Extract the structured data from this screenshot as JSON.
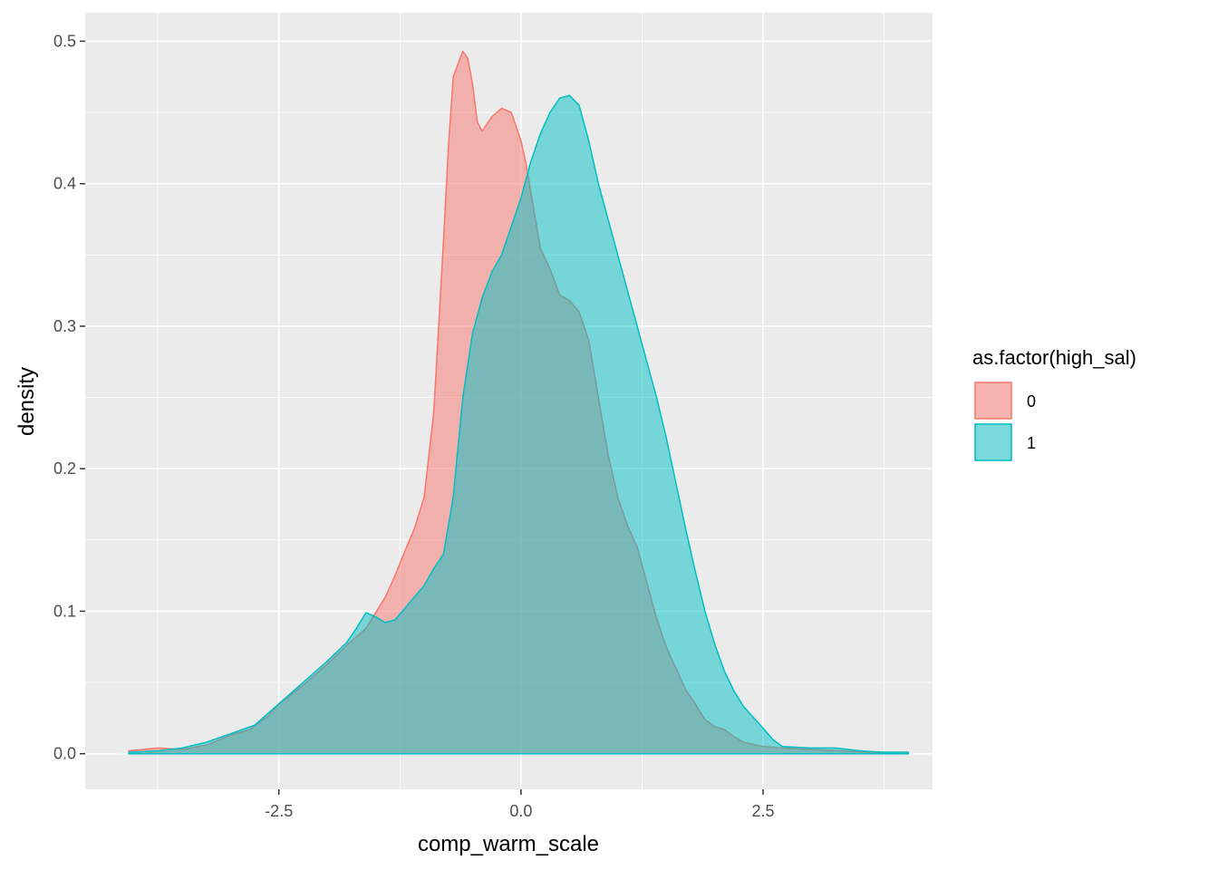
{
  "chart_data": {
    "type": "area",
    "title": "",
    "xlabel": "comp_warm_scale",
    "ylabel": "density",
    "xlim": [
      -4.5,
      4.25
    ],
    "ylim": [
      -0.025,
      0.52
    ],
    "x_ticks": [
      -2.5,
      0.0,
      2.5
    ],
    "x_tick_labels": [
      "-2.5",
      "0.0",
      "2.5"
    ],
    "y_ticks": [
      0.0,
      0.1,
      0.2,
      0.3,
      0.4,
      0.5
    ],
    "y_tick_labels": [
      "0.0",
      "0.1",
      "0.2",
      "0.3",
      "0.4",
      "0.5"
    ],
    "grid": true,
    "legend": {
      "title": "as.factor(high_sal)",
      "placement": "right"
    },
    "series": [
      {
        "name": "0",
        "color": "#F8766D",
        "x": [
          -4.05,
          -3.75,
          -3.5,
          -3.25,
          -3.0,
          -2.8,
          -2.6,
          -2.5,
          -2.4,
          -2.2,
          -2.0,
          -1.8,
          -1.6,
          -1.4,
          -1.3,
          -1.2,
          -1.1,
          -1.0,
          -0.9,
          -0.8,
          -0.75,
          -0.7,
          -0.6,
          -0.55,
          -0.5,
          -0.45,
          -0.4,
          -0.3,
          -0.2,
          -0.1,
          0.0,
          0.05,
          0.1,
          0.2,
          0.3,
          0.4,
          0.5,
          0.6,
          0.7,
          0.8,
          0.9,
          1.0,
          1.1,
          1.2,
          1.3,
          1.4,
          1.5,
          1.6,
          1.7,
          1.8,
          1.9,
          2.0,
          2.1,
          2.2,
          2.3,
          2.5,
          2.7,
          3.0,
          3.3,
          3.6,
          4.0
        ],
        "y": [
          0.002,
          0.004,
          0.003,
          0.006,
          0.013,
          0.017,
          0.027,
          0.035,
          0.04,
          0.051,
          0.063,
          0.076,
          0.088,
          0.11,
          0.125,
          0.142,
          0.158,
          0.18,
          0.24,
          0.36,
          0.425,
          0.475,
          0.493,
          0.488,
          0.47,
          0.443,
          0.437,
          0.447,
          0.453,
          0.45,
          0.43,
          0.415,
          0.395,
          0.355,
          0.34,
          0.322,
          0.318,
          0.31,
          0.29,
          0.25,
          0.21,
          0.18,
          0.16,
          0.145,
          0.12,
          0.095,
          0.075,
          0.06,
          0.045,
          0.035,
          0.024,
          0.019,
          0.017,
          0.012,
          0.008,
          0.005,
          0.004,
          0.003,
          0.002,
          0.001,
          0.001
        ]
      },
      {
        "name": "1",
        "color": "#00BFC4",
        "x": [
          -4.05,
          -3.75,
          -3.5,
          -3.25,
          -3.0,
          -2.75,
          -2.5,
          -2.25,
          -2.0,
          -1.8,
          -1.7,
          -1.6,
          -1.5,
          -1.4,
          -1.3,
          -1.2,
          -1.1,
          -1.0,
          -0.9,
          -0.8,
          -0.7,
          -0.6,
          -0.5,
          -0.4,
          -0.3,
          -0.2,
          -0.1,
          0.0,
          0.1,
          0.2,
          0.3,
          0.4,
          0.5,
          0.6,
          0.7,
          0.8,
          0.9,
          1.0,
          1.1,
          1.2,
          1.3,
          1.4,
          1.5,
          1.6,
          1.7,
          1.8,
          1.9,
          2.0,
          2.1,
          2.2,
          2.3,
          2.5,
          2.6,
          2.7,
          3.0,
          3.25,
          3.5,
          3.75,
          4.0
        ],
        "y": [
          0.001,
          0.002,
          0.004,
          0.008,
          0.014,
          0.02,
          0.035,
          0.05,
          0.065,
          0.078,
          0.088,
          0.099,
          0.096,
          0.092,
          0.094,
          0.102,
          0.11,
          0.118,
          0.13,
          0.14,
          0.18,
          0.25,
          0.295,
          0.32,
          0.338,
          0.35,
          0.37,
          0.39,
          0.415,
          0.435,
          0.45,
          0.46,
          0.462,
          0.455,
          0.43,
          0.4,
          0.375,
          0.35,
          0.325,
          0.3,
          0.275,
          0.25,
          0.222,
          0.19,
          0.158,
          0.128,
          0.1,
          0.077,
          0.058,
          0.044,
          0.033,
          0.018,
          0.01,
          0.005,
          0.004,
          0.004,
          0.002,
          0.001,
          0.001
        ]
      }
    ]
  }
}
